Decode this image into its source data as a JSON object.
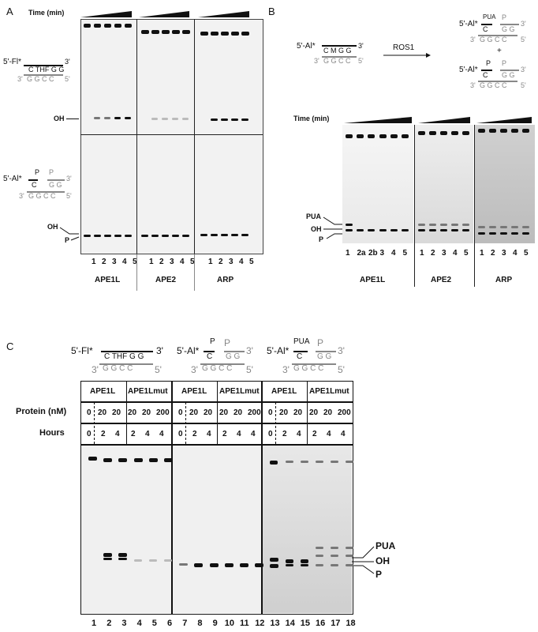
{
  "panelA": {
    "letter": "A",
    "time_label": "Time (min)",
    "top_substrate": {
      "label": "5'-Fl*",
      "top_strand": "C THF G G",
      "end3": "3'",
      "bottom_strand": "G G C C",
      "bot3": "3'",
      "bot5": "5'"
    },
    "bottom_substrate": {
      "label": "5'-Al*",
      "p_top": "P",
      "c": "C",
      "p_right": "P",
      "gg": "G G",
      "end3": "3'",
      "bottom_strand": "G G C C",
      "bot3": "3'",
      "bot5": "5'"
    },
    "oh_label": "OH",
    "oh2_label": "OH",
    "p_label": "P",
    "lanes": [
      "1",
      "2",
      "3",
      "4",
      "5"
    ],
    "enzymes": [
      "APE1L",
      "APE2",
      "ARP"
    ]
  },
  "panelB": {
    "letter": "B",
    "substrate_label": "5'-Al*",
    "top_strand": "C M G G",
    "end3": "3'",
    "bottom_strand": "G G C C",
    "bot3": "3'",
    "bot5": "5'",
    "enzyme": "ROS1",
    "product1": {
      "label": "5'-Al*",
      "pua": "PUA",
      "p": "P",
      "c": "C",
      "gg": "G G",
      "end3": "3'",
      "bottom": "G G C C",
      "bot3": "3'",
      "bot5": "5'"
    },
    "plus": "+",
    "product2": {
      "label": "5'-Al*",
      "p": "P",
      "p2": "P",
      "c": "C",
      "gg": "G G",
      "end3": "3'",
      "bottom": "G G C C",
      "bot3": "3'",
      "bot5": "5'"
    },
    "time_label": "Time (min)",
    "markers": [
      "PUA",
      "OH",
      "P"
    ],
    "lanes_ape1l": [
      "1",
      "2a",
      "2b",
      "3",
      "4",
      "5"
    ],
    "lanes_ape2": [
      "1",
      "2",
      "3",
      "4",
      "5"
    ],
    "lanes_arp": [
      "1",
      "2",
      "3",
      "4",
      "5"
    ],
    "enzymes": [
      "APE1L",
      "APE2",
      "ARP"
    ]
  },
  "panelC": {
    "letter": "C",
    "sub1": {
      "label": "5'-Fl*",
      "top": "C THF G G",
      "end3": "3'",
      "bottom": "G G C C",
      "bot3": "3'",
      "bot5": "5'"
    },
    "sub2": {
      "label": "5'-Al*",
      "p": "P",
      "p2": "P",
      "c": "C",
      "gg": "G G",
      "end3": "3'",
      "bottom": "G G C C",
      "bot3": "3'",
      "bot5": "5'"
    },
    "sub3": {
      "label": "5'-Al*",
      "pua": "PUA",
      "p": "P",
      "c": "C",
      "gg": "G G",
      "end3": "3'",
      "bottom": "G G C C",
      "bot3": "3'",
      "bot5": "5'"
    },
    "enzyme_a": "APE1L",
    "enzyme_b": "APE1Lmut",
    "protein_label": "Protein (nM)",
    "hours_label": "Hours",
    "protein_values": [
      "0",
      "20",
      "20",
      "20",
      "20",
      "200"
    ],
    "hours_values": [
      "0",
      "2",
      "4",
      "2",
      "4",
      "4"
    ],
    "markers": [
      "PUA",
      "OH",
      "P"
    ],
    "lanes": [
      "1",
      "2",
      "3",
      "4",
      "5",
      "6",
      "7",
      "8",
      "9",
      "10",
      "11",
      "12",
      "13",
      "14",
      "15",
      "16",
      "17",
      "18"
    ]
  }
}
